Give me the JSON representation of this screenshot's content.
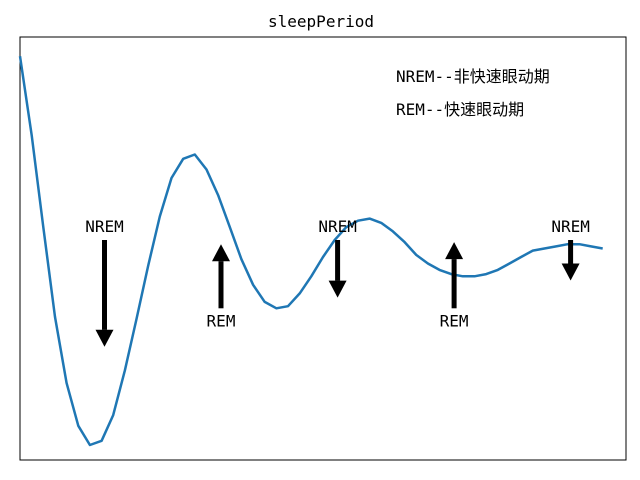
{
  "chart_data": {
    "type": "line",
    "title": "sleepPeriod",
    "xlabel": "",
    "ylabel": "",
    "axes_ticks": "hidden",
    "grid": false,
    "line_color": "#1f77b4",
    "arrow_color": "#000000",
    "xlim": [
      0,
      10.4
    ],
    "ylim": [
      -0.98,
      1.0
    ],
    "series": [
      {
        "x": [
          0,
          0.2,
          0.4,
          0.6,
          0.8,
          1.0,
          1.2,
          1.4,
          1.6,
          1.8,
          2.0,
          2.2,
          2.4,
          2.6,
          2.8,
          3.0,
          3.2,
          3.4,
          3.6,
          3.8,
          4.0,
          4.2,
          4.4,
          4.6,
          4.8,
          5.0,
          5.2,
          5.4,
          5.6,
          5.8,
          6.0,
          6.2,
          6.4,
          6.6,
          6.8,
          7.0,
          7.2,
          7.4,
          7.6,
          7.8,
          8.0,
          8.2,
          8.4,
          8.6,
          8.8,
          9.0,
          9.2,
          9.4,
          9.6,
          9.8,
          10.0
        ],
        "y": [
          0.91,
          0.54,
          0.11,
          -0.31,
          -0.62,
          -0.82,
          -0.91,
          -0.89,
          -0.77,
          -0.56,
          -0.32,
          -0.07,
          0.16,
          0.34,
          0.43,
          0.45,
          0.38,
          0.26,
          0.11,
          -0.04,
          -0.16,
          -0.24,
          -0.27,
          -0.26,
          -0.2,
          -0.12,
          -0.03,
          0.05,
          0.11,
          0.14,
          0.15,
          0.13,
          0.09,
          0.04,
          -0.02,
          -0.06,
          -0.09,
          -0.11,
          -0.12,
          -0.12,
          -0.11,
          -0.09,
          -0.06,
          -0.03,
          0.0,
          0.01,
          0.02,
          0.03,
          0.03,
          0.02,
          0.01
        ]
      }
    ],
    "legend_notes": [
      "NREM--非快速眼动期",
      "REM--快速眼动期"
    ],
    "annotations": [
      {
        "text": "NREM",
        "direction": "down",
        "x": 1.45,
        "y_tip": -0.45,
        "y_tail": 0.05
      },
      {
        "text": "REM",
        "direction": "up",
        "x": 3.45,
        "y_tip": 0.03,
        "y_tail": -0.27
      },
      {
        "text": "NREM",
        "direction": "down",
        "x": 5.45,
        "y_tip": -0.22,
        "y_tail": 0.05
      },
      {
        "text": "REM",
        "direction": "up",
        "x": 7.45,
        "y_tip": 0.04,
        "y_tail": -0.27
      },
      {
        "text": "NREM",
        "direction": "down",
        "x": 9.45,
        "y_tip": -0.14,
        "y_tail": 0.05
      }
    ]
  }
}
